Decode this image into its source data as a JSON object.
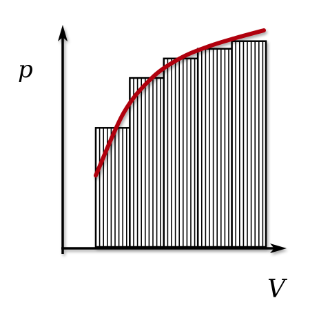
{
  "axes": {
    "y_label": "p",
    "x_label": "V"
  },
  "bars": {
    "count": 5,
    "heights": [
      0.55,
      0.78,
      0.87,
      0.915,
      0.95
    ]
  },
  "curve": {
    "description_free": true,
    "samples": [
      0.33,
      0.62,
      0.78,
      0.87,
      0.925,
      0.965,
      1.0
    ]
  },
  "colors": {
    "curve": "#b0000f",
    "bar_stroke": "#000000",
    "axes": "#000000",
    "background": "#ffffff"
  }
}
